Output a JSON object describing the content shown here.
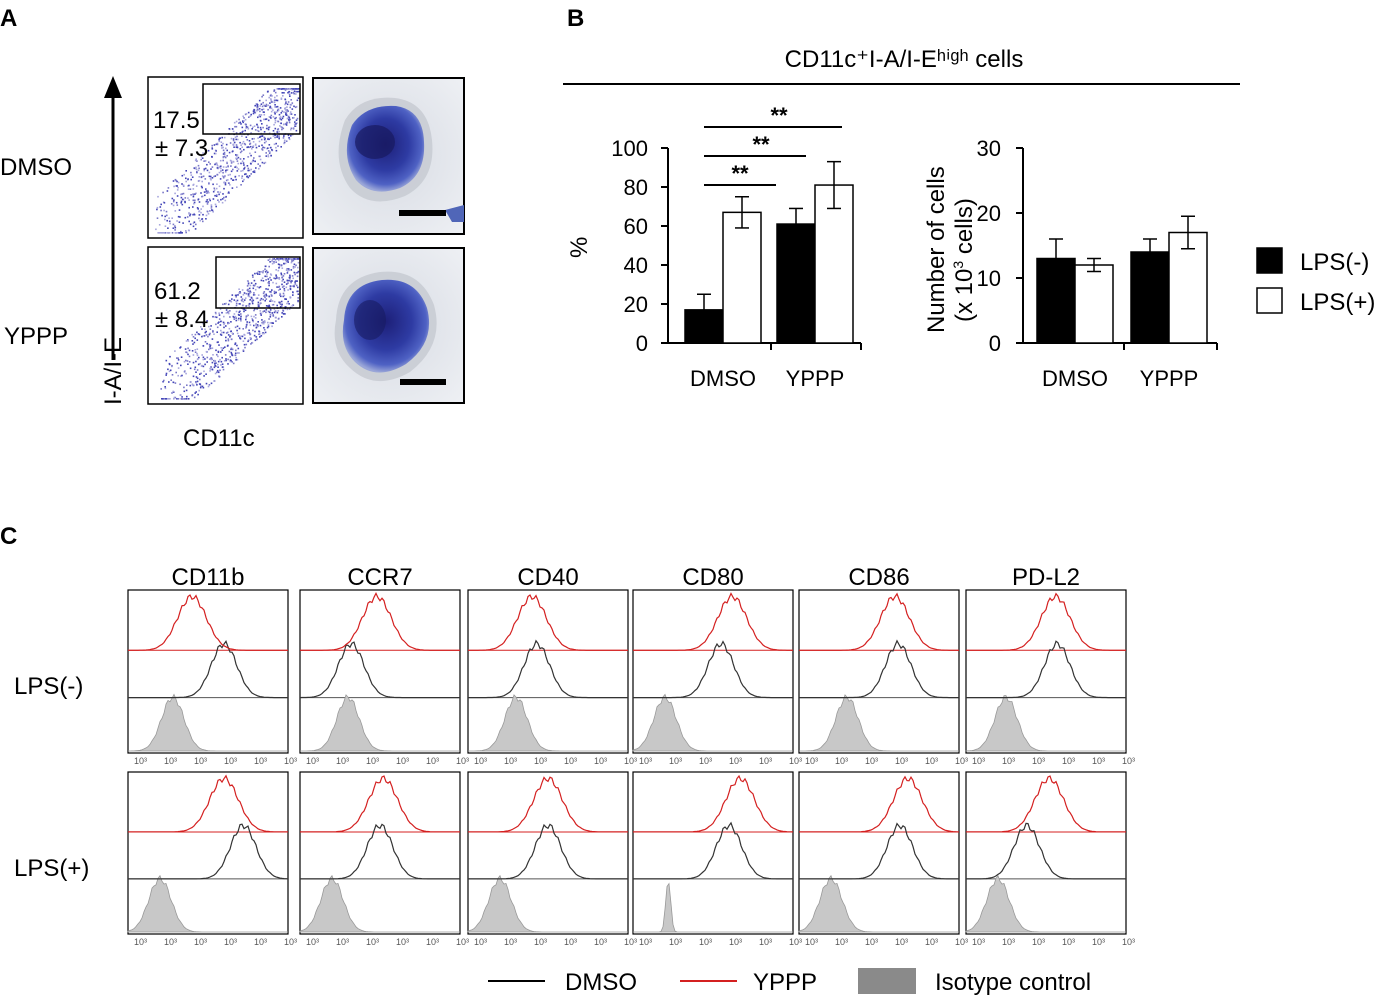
{
  "panel_labels": {
    "a": "A",
    "b": "B",
    "c": "C"
  },
  "panel_a": {
    "y_axis_label": "I-A/I-E",
    "x_axis_label": "CD11c",
    "rows": [
      {
        "condition": "DMSO",
        "gate_value": "17.5",
        "gate_sd": "± 7.3"
      },
      {
        "condition": "YPPP",
        "gate_value": "61.2",
        "gate_sd": "± 8.4"
      }
    ]
  },
  "panel_b": {
    "title": "CD11c⁺I-A/I-Eʰⁱᵍʰ cells",
    "legend": [
      {
        "label": "LPS(-)",
        "color": "#000000"
      },
      {
        "label": "LPS(+)",
        "color": "#ffffff"
      }
    ],
    "significance_marker": "**"
  },
  "chart_data": [
    {
      "type": "bar",
      "title": "CD11c+I-A/I-Ehigh cells (%)",
      "categories": [
        "DMSO",
        "YPPP"
      ],
      "ylabel": "%",
      "ylim": [
        0,
        100
      ],
      "yticks": [
        "0",
        "20",
        "40",
        "60",
        "80",
        "100"
      ],
      "series": [
        {
          "name": "LPS(-)",
          "values": [
            17,
            61
          ],
          "errors": [
            8,
            8
          ]
        },
        {
          "name": "LPS(+)",
          "values": [
            67,
            81
          ],
          "errors": [
            8,
            12
          ]
        }
      ],
      "significance": [
        {
          "from": "DMSO LPS(-)",
          "to": "DMSO LPS(+)",
          "label": "**"
        },
        {
          "from": "DMSO LPS(-)",
          "to": "YPPP LPS(-)",
          "label": "**"
        },
        {
          "from": "DMSO LPS(-)",
          "to": "YPPP LPS(+)",
          "label": "**"
        }
      ]
    },
    {
      "type": "bar",
      "title": "Number of cells",
      "categories": [
        "DMSO",
        "YPPP"
      ],
      "ylabel": "Number of cells",
      "ylabel2": "(x 10",
      "ylabel2_sup": "3",
      "ylabel2_end": " cells)",
      "ylim": [
        0,
        30
      ],
      "yticks": [
        "0",
        "10",
        "20",
        "30"
      ],
      "series": [
        {
          "name": "LPS(-)",
          "values": [
            13,
            14
          ],
          "errors": [
            3,
            2
          ]
        },
        {
          "name": "LPS(+)",
          "values": [
            12,
            17
          ],
          "errors": [
            1,
            2.5
          ]
        }
      ]
    }
  ],
  "panel_c": {
    "markers": [
      "CD11b",
      "CCR7",
      "CD40",
      "CD80",
      "CD86",
      "PD-L2"
    ],
    "rows": [
      "LPS(-)",
      "LPS(+)"
    ],
    "axis_tick_label": "10³",
    "legend": [
      {
        "label": "DMSO",
        "color": "#000000",
        "kind": "line"
      },
      {
        "label": "YPPP",
        "color": "#d42020",
        "kind": "line"
      },
      {
        "label": "Isotype control",
        "color": "#888888",
        "kind": "fill"
      }
    ]
  }
}
